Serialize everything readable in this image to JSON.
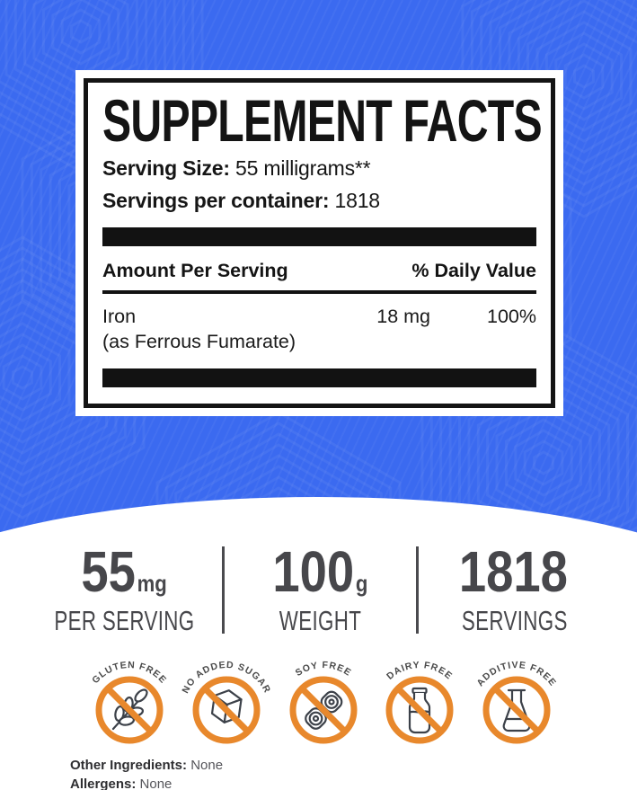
{
  "colors": {
    "background_blue": "#3B6AF0",
    "badge_orange": "#E8882C",
    "stats_gray": "#47474B",
    "panel_black": "#141414"
  },
  "panel": {
    "title": "SUPPLEMENT FACTS",
    "serving_size": {
      "label": "Serving Size:",
      "value": "55 milligrams**"
    },
    "servings_per_container": {
      "label": "Servings per container:",
      "value": "1818"
    },
    "columns": {
      "amount": "Amount Per Serving",
      "daily_value": "% Daily Value"
    },
    "rows": [
      {
        "name": "Iron",
        "detail": "(as Ferrous Fumarate)",
        "amount": "18 mg",
        "daily_value": "100%"
      }
    ]
  },
  "stats": [
    {
      "value": "55",
      "unit": "mg",
      "label": "PER SERVING"
    },
    {
      "value": "100",
      "unit": "g",
      "label": "WEIGHT"
    },
    {
      "value": "1818",
      "unit": "",
      "label": "SERVINGS"
    }
  ],
  "badges": [
    {
      "label": "GLUTEN FREE",
      "icon": "wheat-icon"
    },
    {
      "label": "NO ADDED SUGAR",
      "icon": "sugar-cube-icon"
    },
    {
      "label": "SOY FREE",
      "icon": "soy-pod-icon"
    },
    {
      "label": "DAIRY FREE",
      "icon": "milk-bottle-icon"
    },
    {
      "label": "ADDITIVE FREE",
      "icon": "lab-flask-icon"
    }
  ],
  "footnotes": {
    "other_ingredients": {
      "label": "Other Ingredients:",
      "value": "None"
    },
    "allergens": {
      "label": "Allergens:",
      "value": "None"
    }
  }
}
